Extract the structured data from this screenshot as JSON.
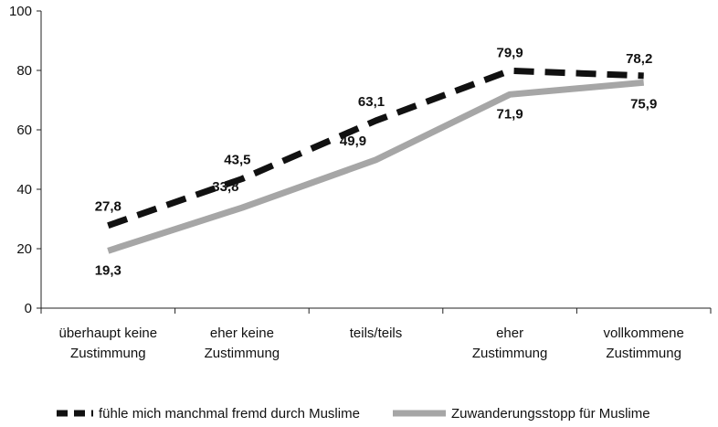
{
  "chart_data": {
    "type": "line",
    "categories": [
      [
        "überhaupt keine",
        "Zustimmung"
      ],
      [
        "eher keine",
        "Zustimmung"
      ],
      [
        "teils/teils"
      ],
      [
        "eher",
        "Zustimmung"
      ],
      [
        "vollkommene",
        "Zustimmung"
      ]
    ],
    "ylim": [
      0,
      100
    ],
    "yticks": [
      0,
      20,
      40,
      60,
      80,
      100
    ],
    "grid": false,
    "legend_position": "bottom",
    "series": [
      {
        "name": "fühle mich manchmal fremd durch Muslime",
        "values": [
          27.8,
          43.5,
          63.1,
          79.9,
          78.2
        ],
        "labels": [
          "27,8",
          "43,5",
          "63,1",
          "79,9",
          "78,2"
        ],
        "color": "#111111",
        "style": "dashed"
      },
      {
        "name": "Zuwanderungsstopp für Muslime",
        "values": [
          19.3,
          33.8,
          49.9,
          71.9,
          75.9
        ],
        "labels": [
          "19,3",
          "33,8",
          "49,9",
          "71,9",
          "75,9"
        ],
        "color": "#a6a6a6",
        "style": "solid"
      }
    ]
  }
}
